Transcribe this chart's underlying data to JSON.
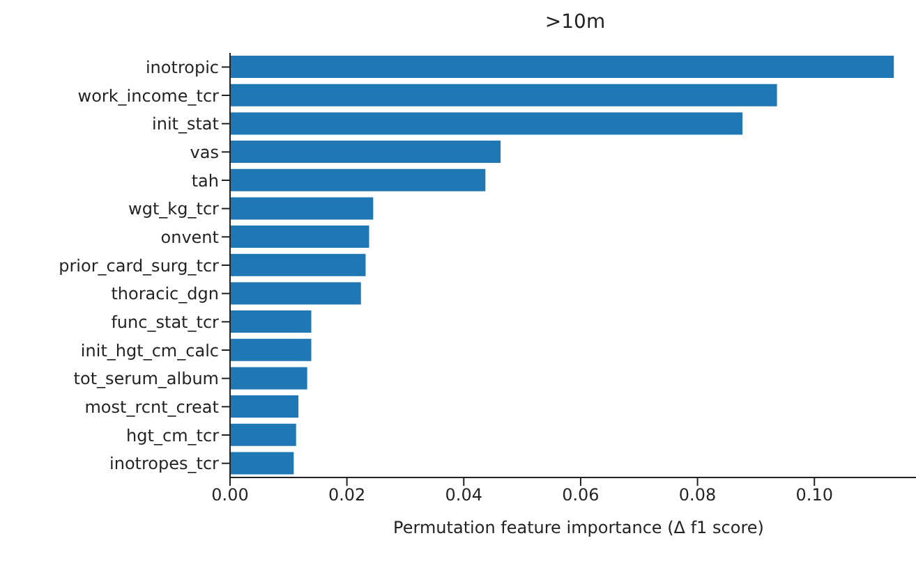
{
  "chart_data": {
    "type": "bar",
    "orientation": "horizontal",
    "title": ">10m",
    "xlabel": "Permutation feature importance (Δ f1 score)",
    "categories": [
      "inotropic",
      "work_income_tcr",
      "init_stat",
      "vas",
      "tah",
      "wgt_kg_tcr",
      "onvent",
      "prior_card_surg_tcr",
      "thoracic_dgn",
      "func_stat_tcr",
      "init_hgt_cm_calc",
      "tot_serum_album",
      "most_rcnt_creat",
      "hgt_cm_tcr",
      "inotropes_tcr"
    ],
    "values": [
      0.1136,
      0.0936,
      0.0877,
      0.0463,
      0.0437,
      0.0245,
      0.0238,
      0.0232,
      0.0224,
      0.0139,
      0.0139,
      0.0132,
      0.0117,
      0.0113,
      0.0109
    ],
    "color": "#1f77b4",
    "xlim": [
      0,
      0.1193
    ],
    "xticks": [
      {
        "value": 0,
        "label": "0.00"
      },
      {
        "value": 0.02,
        "label": "0.02"
      },
      {
        "value": 0.04,
        "label": "0.04"
      },
      {
        "value": 0.06,
        "label": "0.06"
      },
      {
        "value": 0.08,
        "label": "0.08"
      },
      {
        "value": 0.1,
        "label": "0.10"
      }
    ],
    "grid": false,
    "legend": false
  }
}
